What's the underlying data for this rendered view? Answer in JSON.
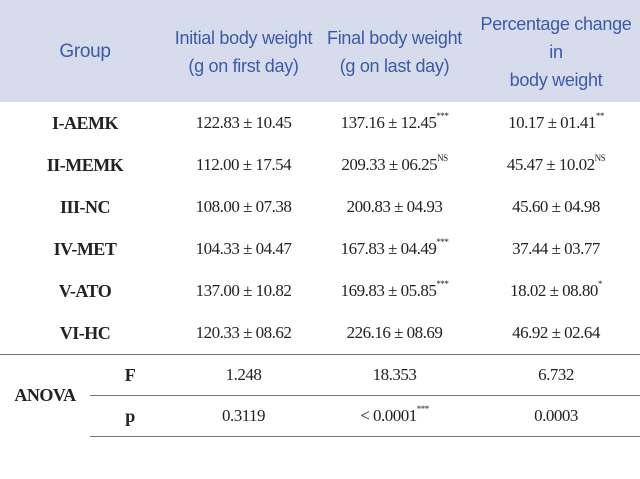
{
  "headers": {
    "group": "Group",
    "initial_line1": "Initial body weight",
    "initial_line2": "(g on first day)",
    "final_line1": "Final body weight",
    "final_line2": "(g on last day)",
    "change_line1": "Percentage change in",
    "change_line2": "body weight"
  },
  "rows": [
    {
      "group": "I-AEMK",
      "initial": "122.83 ± 10.45",
      "final": "137.16 ± 12.45",
      "final_sup": "***",
      "change": "10.17 ± 01.41",
      "change_sup": "**"
    },
    {
      "group": "II-MEMK",
      "initial": "112.00 ± 17.54",
      "final": "209.33 ± 06.25",
      "final_sup": "NS",
      "change": "45.47 ± 10.02",
      "change_sup": "NS"
    },
    {
      "group": "III-NC",
      "initial": "108.00 ± 07.38",
      "final": "200.83 ± 04.93",
      "final_sup": "",
      "change": "45.60 ± 04.98",
      "change_sup": ""
    },
    {
      "group": "IV-MET",
      "initial": "104.33 ± 04.47",
      "final": "167.83 ± 04.49",
      "final_sup": "***",
      "change": "37.44 ± 03.77",
      "change_sup": ""
    },
    {
      "group": "V-ATO",
      "initial": "137.00 ± 10.82",
      "final": "169.83 ± 05.85",
      "final_sup": "***",
      "change": "18.02 ± 08.80",
      "change_sup": "*"
    },
    {
      "group": "VI-HC",
      "initial": "120.33 ± 08.62",
      "final": "226.16 ± 08.69",
      "final_sup": "",
      "change": "46.92 ± 02.64",
      "change_sup": ""
    }
  ],
  "anova": {
    "label": "ANOVA",
    "f": {
      "label": "F",
      "initial": "1.248",
      "final": "18.353",
      "change": "6.732"
    },
    "p": {
      "label": "p",
      "initial": "0.3119",
      "final": "< 0.0001",
      "final_sup": "***",
      "change": "0.0003"
    }
  }
}
